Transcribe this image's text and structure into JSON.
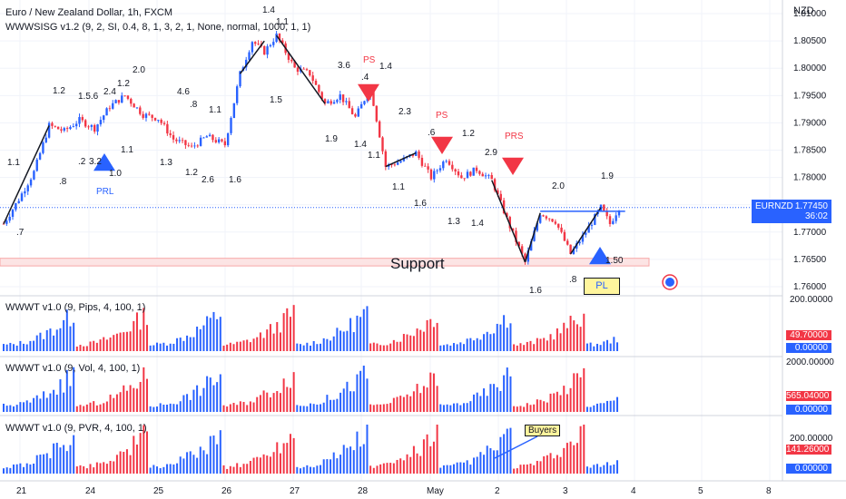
{
  "header": {
    "title": "Euro / New Zealand Dollar, 1h, FXCM",
    "indicator": "WWWSISG v1.2 (9, 2, SI, 0.4, 8, 1, 3, 2, 1, None, normal, 1000, 1, 1)",
    "currency": "NZD"
  },
  "price_tag": {
    "symbol": "EURNZD",
    "price": "1.77450",
    "countdown": "36:02"
  },
  "support_label": "Support",
  "pl_label": "PL",
  "labels": {
    "prl": "PRL",
    "ps1": "PS",
    "ps2": "PS",
    "prs": "PRS",
    "buyers": "Buyers"
  },
  "swing_numbers": [
    "1.4",
    "1.1",
    "1.2",
    "1.5.6",
    "2.4",
    "1.2",
    "2.0",
    "4.6",
    ".8",
    "1.1",
    "1.5",
    "3.6",
    ".4",
    "1.4",
    "2.3",
    ".6",
    "1.2",
    "2.9",
    "2.0",
    "1.9",
    "1.1",
    ".8",
    ".2",
    "3.2",
    "1.0",
    "1.1",
    "1.3",
    "1.2",
    "2.6",
    "1.6",
    "1.9",
    "1.4",
    "1.1",
    "1.1",
    "1.6",
    "1.3",
    "1.4",
    ".7",
    "1.6",
    ".8",
    "1.50"
  ],
  "panels": [
    {
      "title": "WWWT v1.0 (9, Pips, 4, 100, 1)",
      "scale_top": "200.00000",
      "value": "49.70000",
      "zero": "0.00000"
    },
    {
      "title": "WWWT v1.0 (9, Vol, 4, 100, 1)",
      "scale_top": "2000.00000",
      "value": "565.04000",
      "zero": "0.00000"
    },
    {
      "title": "WWWT v1.0 (9, PVR, 4, 100, 1)",
      "scale_top": "200.00000",
      "value": "141.26000",
      "zero": "0.00000"
    }
  ],
  "colors": {
    "up": "#26a69a",
    "down": "#ef5350",
    "blue": "#2962ff",
    "red": "#f23645",
    "grid": "#f0f3fa"
  },
  "chart_data": {
    "type": "candlestick",
    "x_ticks": [
      "21",
      "24",
      "25",
      "26",
      "27",
      "28",
      "May",
      "2",
      "3",
      "4",
      "5",
      "8"
    ],
    "y_ticks": [
      "1.81000",
      "1.80500",
      "1.80000",
      "1.79500",
      "1.79000",
      "1.78500",
      "1.78000",
      "1.77500",
      "1.77000",
      "1.76500",
      "1.76000"
    ],
    "ylim": [
      1.7585,
      1.8125
    ],
    "last_price": 1.7745,
    "support_zone": [
      1.7638,
      1.7652
    ],
    "wave_path": [
      {
        "t": 0,
        "p": 1.7715
      },
      {
        "t": 10,
        "p": 1.776
      },
      {
        "t": 20,
        "p": 1.781
      },
      {
        "t": 30,
        "p": 1.7895
      },
      {
        "t": 40,
        "p": 1.7885
      },
      {
        "t": 50,
        "p": 1.7905
      },
      {
        "t": 60,
        "p": 1.789
      },
      {
        "t": 70,
        "p": 1.793
      },
      {
        "t": 80,
        "p": 1.795
      },
      {
        "t": 92,
        "p": 1.7915
      },
      {
        "t": 102,
        "p": 1.7908
      },
      {
        "t": 112,
        "p": 1.787
      },
      {
        "t": 124,
        "p": 1.7855
      },
      {
        "t": 134,
        "p": 1.7875
      },
      {
        "t": 146,
        "p": 1.786
      },
      {
        "t": 156,
        "p": 1.799
      },
      {
        "t": 164,
        "p": 1.805
      },
      {
        "t": 172,
        "p": 1.803
      },
      {
        "t": 180,
        "p": 1.806
      },
      {
        "t": 192,
        "p": 1.8
      },
      {
        "t": 202,
        "p": 1.799
      },
      {
        "t": 212,
        "p": 1.7935
      },
      {
        "t": 222,
        "p": 1.795
      },
      {
        "t": 232,
        "p": 1.791
      },
      {
        "t": 242,
        "p": 1.7965
      },
      {
        "t": 252,
        "p": 1.782
      },
      {
        "t": 262,
        "p": 1.783
      },
      {
        "t": 272,
        "p": 1.7845
      },
      {
        "t": 282,
        "p": 1.78
      },
      {
        "t": 292,
        "p": 1.7835
      },
      {
        "t": 302,
        "p": 1.78
      },
      {
        "t": 312,
        "p": 1.7815
      },
      {
        "t": 322,
        "p": 1.7795
      },
      {
        "t": 334,
        "p": 1.771
      },
      {
        "t": 344,
        "p": 1.7645
      },
      {
        "t": 354,
        "p": 1.7735
      },
      {
        "t": 364,
        "p": 1.772
      },
      {
        "t": 374,
        "p": 1.766
      },
      {
        "t": 384,
        "p": 1.77
      },
      {
        "t": 394,
        "p": 1.7745
      },
      {
        "t": 400,
        "p": 1.7715
      },
      {
        "t": 406,
        "p": 1.7745
      }
    ],
    "trend_lines": [
      {
        "x1": 0,
        "y1": 1.7715,
        "x2": 30,
        "y2": 1.7895
      },
      {
        "x1": 156,
        "y1": 1.799,
        "x2": 172,
        "y2": 1.805
      },
      {
        "x1": 180,
        "y1": 1.806,
        "x2": 212,
        "y2": 1.7935
      },
      {
        "x1": 252,
        "y1": 1.782,
        "x2": 272,
        "y2": 1.7845
      },
      {
        "x1": 322,
        "y1": 1.7795,
        "x2": 344,
        "y2": 1.7645
      },
      {
        "x1": 344,
        "y1": 1.7645,
        "x2": 354,
        "y2": 1.7735
      },
      {
        "x1": 374,
        "y1": 1.766,
        "x2": 394,
        "y2": 1.7745
      }
    ],
    "resistance_line": {
      "x1": 354,
      "x2": 410,
      "p": 1.7738
    },
    "panels": [
      {
        "name": "Pips",
        "ylim": [
          0,
          200
        ]
      },
      {
        "name": "Vol",
        "ylim": [
          0,
          2000
        ]
      },
      {
        "name": "PVR",
        "ylim": [
          0,
          200
        ]
      }
    ]
  }
}
